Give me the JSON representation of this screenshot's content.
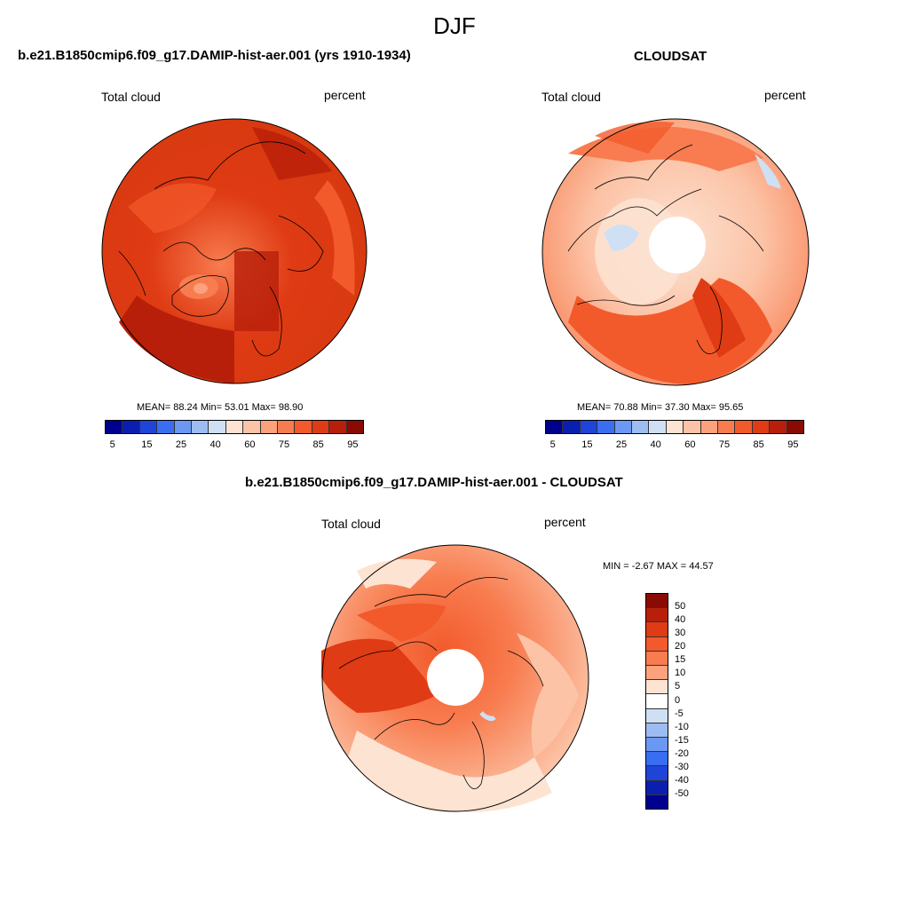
{
  "title": "DJF",
  "panels": [
    {
      "title": "b.e21.B1850cmip6.f09_g17.DAMIP-hist-aer.001 (yrs 1910-1934)",
      "left_label": "Total cloud",
      "right_label": "percent",
      "stats": "MEAN=  88.24  Min=  53.01  Max=  98.90"
    },
    {
      "title": "CLOUDSAT",
      "left_label": "Total cloud",
      "right_label": "percent",
      "stats": "MEAN=  70.88  Min=  37.30  Max=  95.65"
    },
    {
      "title": "b.e21.B1850cmip6.f09_g17.DAMIP-hist-aer.001 - CLOUDSAT",
      "left_label": "Total cloud",
      "right_label": "percent",
      "stats": "MIN =  -2.67 MAX =  44.57"
    }
  ],
  "colorbar_abs": {
    "colors": [
      "#00008f",
      "#0a1fb0",
      "#1f44d9",
      "#3a6ef0",
      "#6b98f2",
      "#9dbcf2",
      "#cfe0f5",
      "#fde3d2",
      "#fcc3a6",
      "#fba27d",
      "#f87c4f",
      "#f25a2b",
      "#df3b14",
      "#b81f0a",
      "#8a0a04"
    ],
    "ticks": [
      "5",
      "15",
      "25",
      "40",
      "60",
      "75",
      "85",
      "95"
    ]
  },
  "colorbar_diff": {
    "colors": [
      "#8a0a04",
      "#b81f0a",
      "#df3b14",
      "#f25a2b",
      "#f87c4f",
      "#fba27d",
      "#fde3d2",
      "#ffffff",
      "#cfe0f5",
      "#9dbcf2",
      "#6b98f2",
      "#3a6ef0",
      "#1f44d9",
      "#0a1fb0",
      "#00008f"
    ],
    "ticks": [
      "50",
      "40",
      "30",
      "20",
      "15",
      "10",
      "5",
      "0",
      "-5",
      "-10",
      "-15",
      "-20",
      "-30",
      "-40",
      "-50"
    ]
  }
}
